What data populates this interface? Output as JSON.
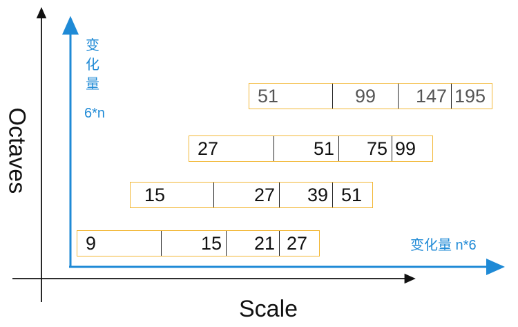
{
  "axes": {
    "x_title": "Scale",
    "y_title": "Octaves"
  },
  "inner_axis": {
    "y_label_chars": [
      "变",
      "化",
      "量"
    ],
    "y_label_formula": "6*n",
    "x_label": "变化量 n*6",
    "color": "#1f8ad6"
  },
  "box_color": "#f2b632",
  "rows": [
    {
      "id": "octave-4",
      "values": [
        "51",
        "99",
        "147",
        "195"
      ]
    },
    {
      "id": "octave-3",
      "values": [
        "27",
        "51",
        "75",
        "99"
      ]
    },
    {
      "id": "octave-2",
      "values": [
        "15",
        "27",
        "39",
        "51"
      ]
    },
    {
      "id": "octave-1",
      "values": [
        "9",
        "15",
        "21",
        "27"
      ]
    }
  ]
}
